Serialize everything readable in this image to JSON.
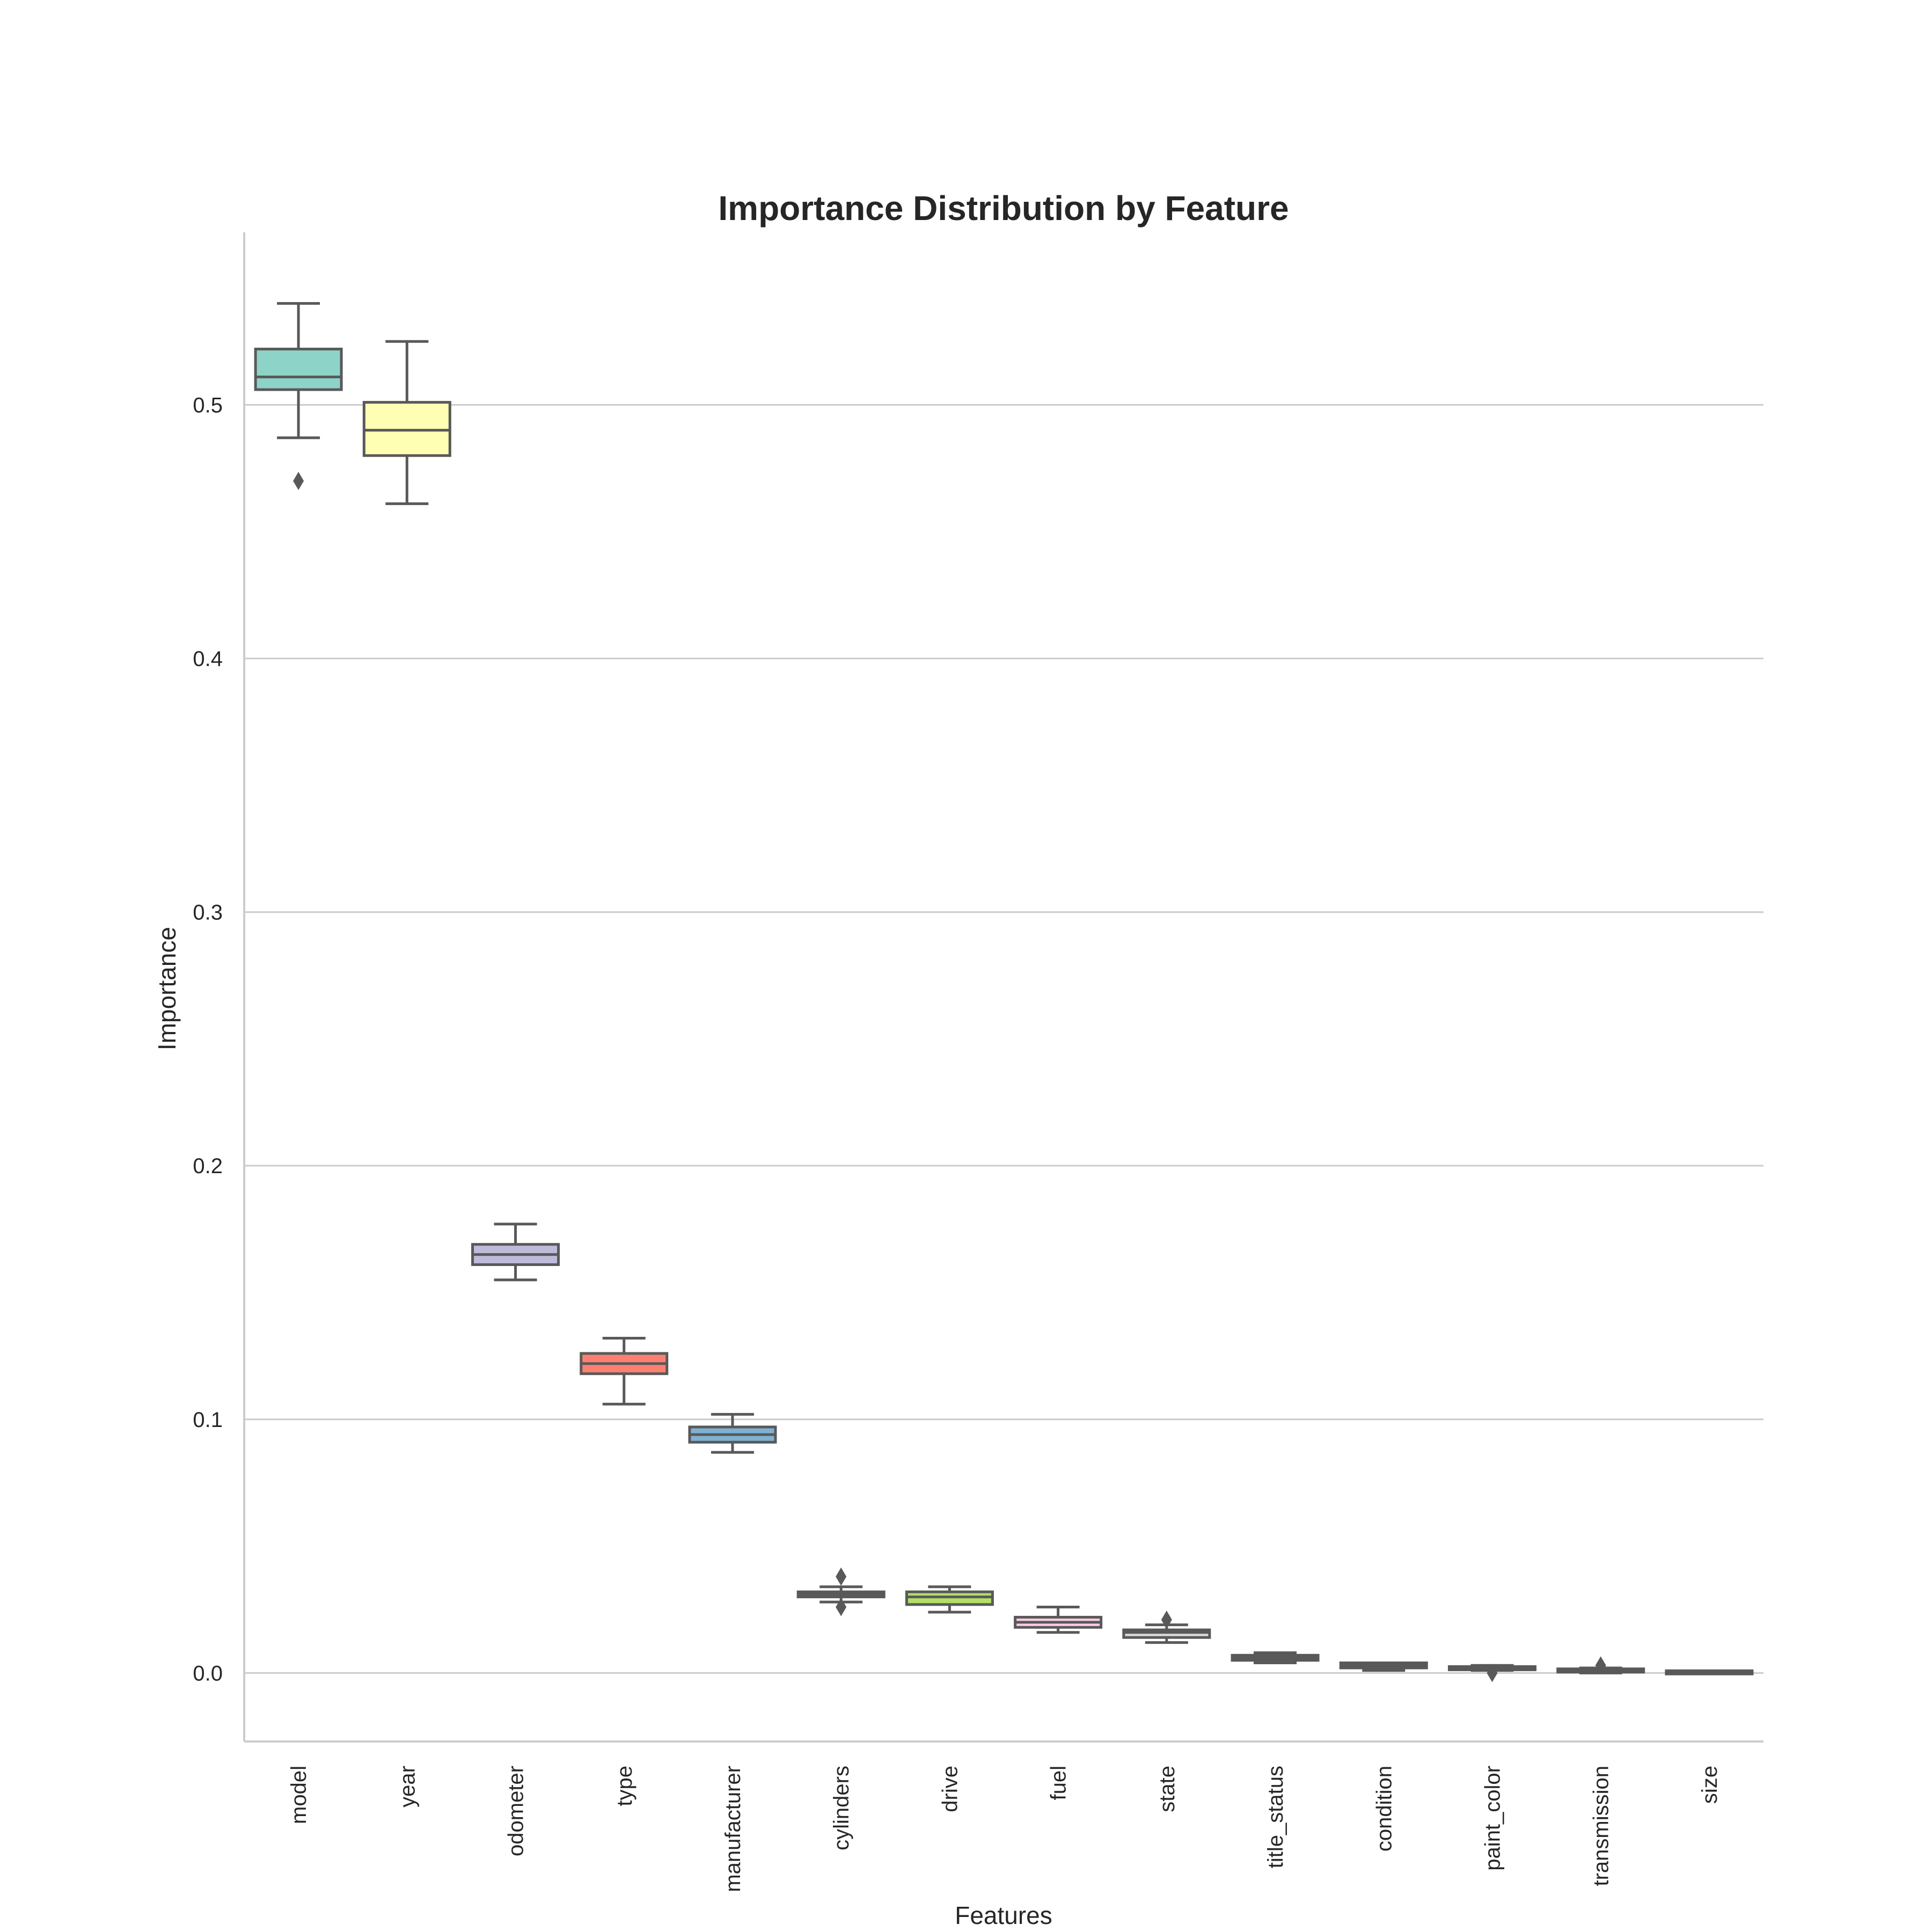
{
  "chart_data": {
    "type": "box",
    "title": "Importance Distribution by Feature",
    "xlabel": "Features",
    "ylabel": "Importance",
    "ylim": [
      -0.027,
      0.568
    ],
    "yticks": [
      0.0,
      0.1,
      0.2,
      0.3,
      0.4,
      0.5
    ],
    "ytick_labels": [
      "0.0",
      "0.1",
      "0.2",
      "0.3",
      "0.4",
      "0.5"
    ],
    "grid": "horizontal",
    "categories": [
      "model",
      "year",
      "odometer",
      "type",
      "manufacturer",
      "cylinders",
      "drive",
      "fuel",
      "state",
      "title_status",
      "condition",
      "paint_color",
      "transmission",
      "size"
    ],
    "boxes": [
      {
        "name": "model",
        "whisker_low": 0.487,
        "q1": 0.506,
        "median": 0.511,
        "q3": 0.522,
        "whisker_high": 0.54,
        "outliers": [
          0.47
        ],
        "color": "#8dd3c7"
      },
      {
        "name": "year",
        "whisker_low": 0.461,
        "q1": 0.48,
        "median": 0.49,
        "q3": 0.501,
        "whisker_high": 0.525,
        "outliers": [],
        "color": "#ffffb3"
      },
      {
        "name": "odometer",
        "whisker_low": 0.155,
        "q1": 0.161,
        "median": 0.165,
        "q3": 0.169,
        "whisker_high": 0.177,
        "outliers": [],
        "color": "#bebada"
      },
      {
        "name": "type",
        "whisker_low": 0.106,
        "q1": 0.118,
        "median": 0.122,
        "q3": 0.126,
        "whisker_high": 0.132,
        "outliers": [],
        "color": "#fb8072"
      },
      {
        "name": "manufacturer",
        "whisker_low": 0.087,
        "q1": 0.091,
        "median": 0.094,
        "q3": 0.097,
        "whisker_high": 0.102,
        "outliers": [],
        "color": "#80b1d3"
      },
      {
        "name": "cylinders",
        "whisker_low": 0.028,
        "q1": 0.03,
        "median": 0.031,
        "q3": 0.032,
        "whisker_high": 0.034,
        "outliers": [
          0.038,
          0.026
        ],
        "color": "#fdb462"
      },
      {
        "name": "drive",
        "whisker_low": 0.024,
        "q1": 0.027,
        "median": 0.03,
        "q3": 0.032,
        "whisker_high": 0.034,
        "outliers": [],
        "color": "#b3de69"
      },
      {
        "name": "fuel",
        "whisker_low": 0.016,
        "q1": 0.018,
        "median": 0.02,
        "q3": 0.022,
        "whisker_high": 0.026,
        "outliers": [],
        "color": "#fccde5"
      },
      {
        "name": "state",
        "whisker_low": 0.012,
        "q1": 0.014,
        "median": 0.016,
        "q3": 0.017,
        "whisker_high": 0.019,
        "outliers": [
          0.021
        ],
        "color": "#d9d9d9"
      },
      {
        "name": "title_status",
        "whisker_low": 0.004,
        "q1": 0.005,
        "median": 0.006,
        "q3": 0.007,
        "whisker_high": 0.008,
        "outliers": [],
        "color": "#bc80bd"
      },
      {
        "name": "condition",
        "whisker_low": 0.001,
        "q1": 0.002,
        "median": 0.003,
        "q3": 0.004,
        "whisker_high": 0.004,
        "outliers": [],
        "color": "#ccebc5"
      },
      {
        "name": "paint_color",
        "whisker_low": 0.001,
        "q1": 0.0013,
        "median": 0.002,
        "q3": 0.0025,
        "whisker_high": 0.003,
        "outliers": [
          0.0
        ],
        "color": "#ffed6f"
      },
      {
        "name": "transmission",
        "whisker_low": 0.0,
        "q1": 0.0005,
        "median": 0.001,
        "q3": 0.0015,
        "whisker_high": 0.002,
        "outliers": [
          0.003
        ],
        "color": "#8dd3c7"
      },
      {
        "name": "size",
        "whisker_low": 0.0,
        "q1": 0.0001,
        "median": 0.0002,
        "q3": 0.0004,
        "whisker_high": 0.0005,
        "outliers": [],
        "color": "#ffffb3"
      }
    ]
  }
}
